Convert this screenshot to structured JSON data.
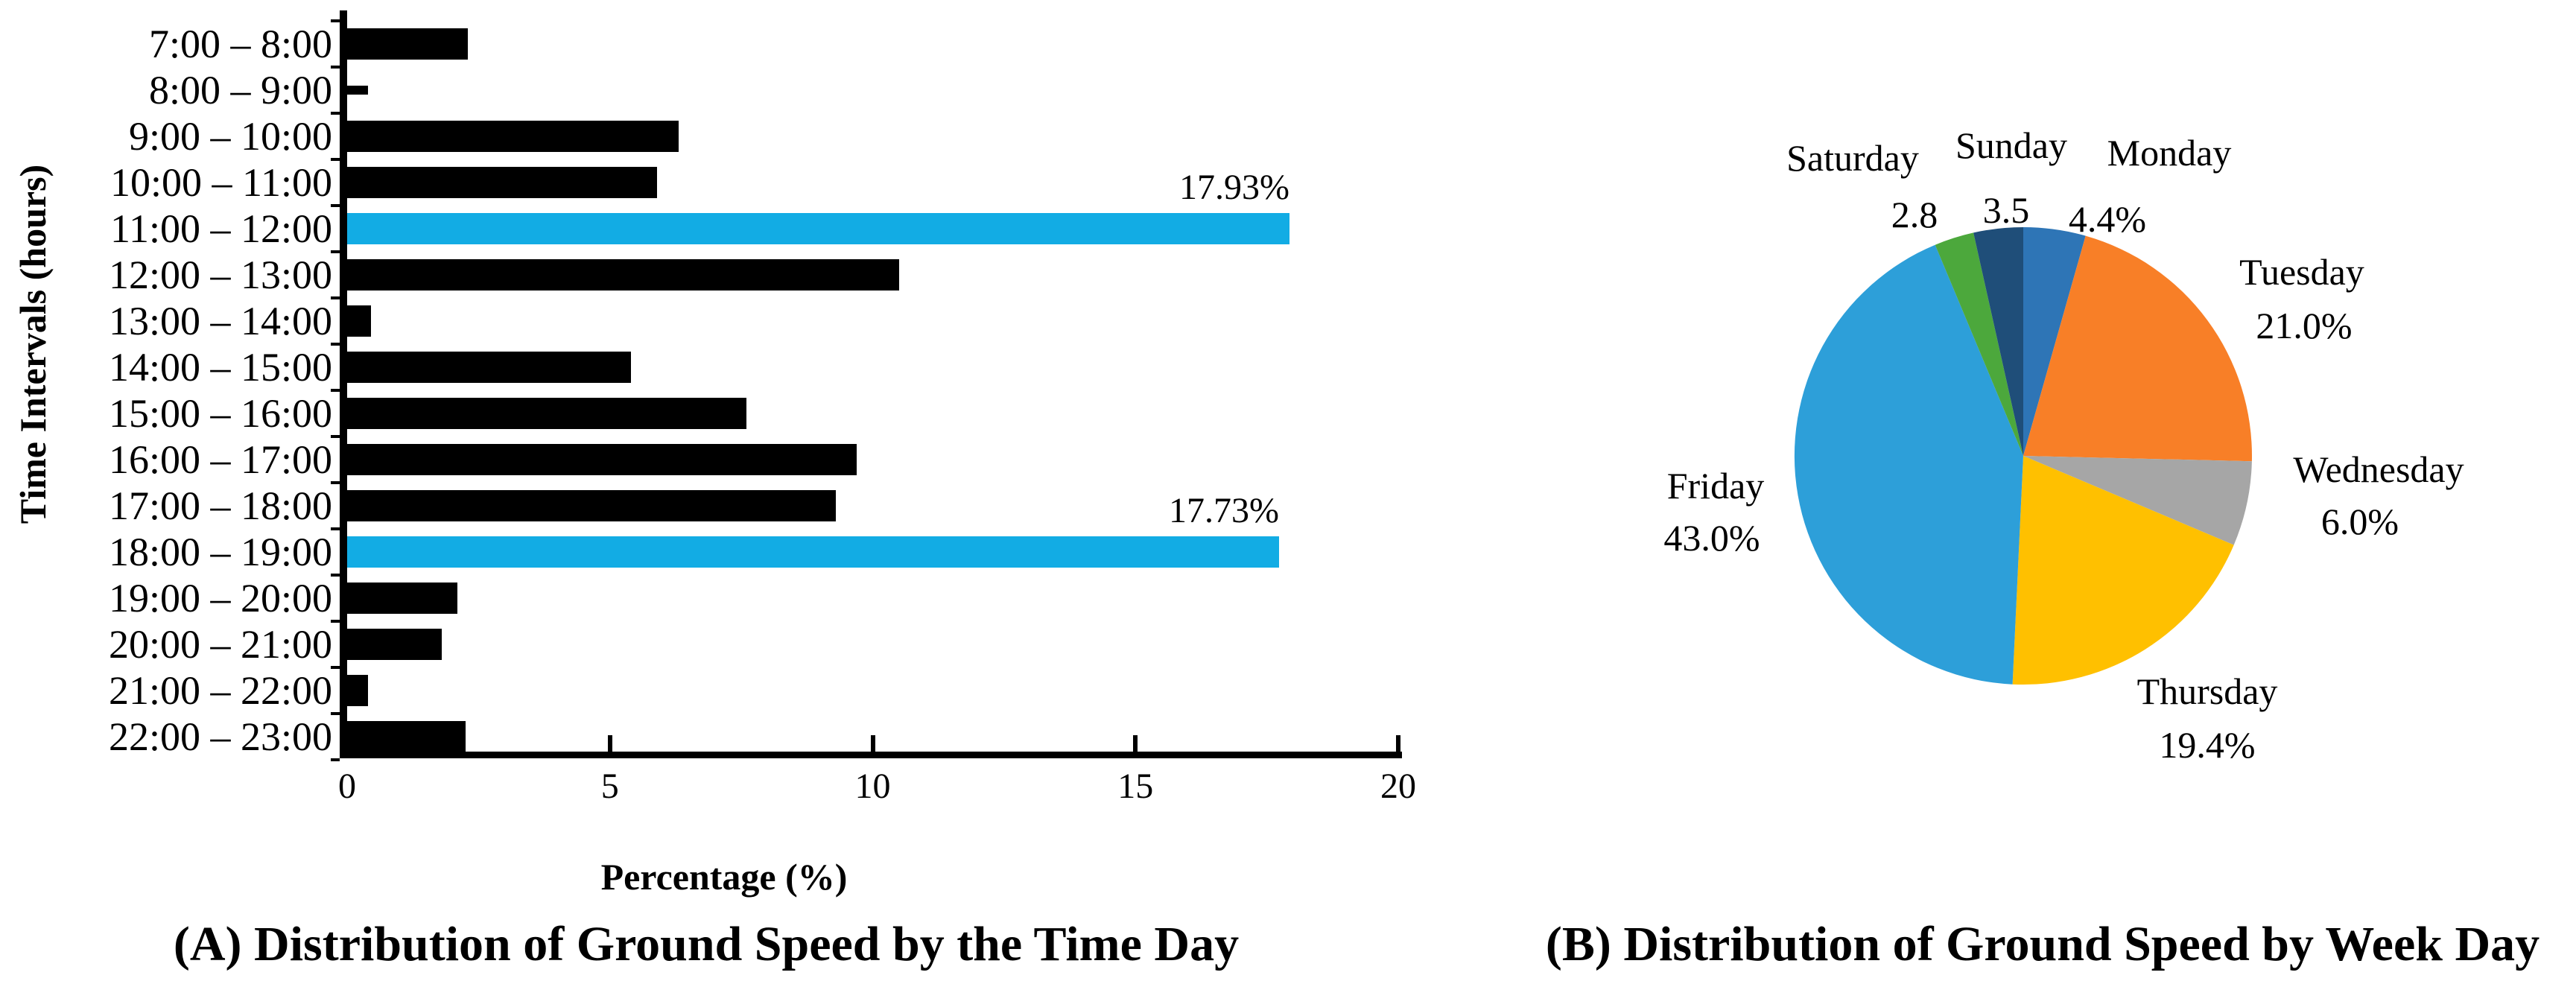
{
  "chart_data": [
    {
      "id": "ground-speed-by-time-of-day",
      "type": "bar",
      "orientation": "horizontal",
      "caption": "(A) Distribution of Ground Speed by the Time Day",
      "xlabel": "Percentage (%)",
      "ylabel": "Time Intervals (hours)",
      "xlim": [
        0,
        20
      ],
      "x_ticks": [
        0,
        5,
        10,
        15,
        20
      ],
      "grid": false,
      "categories": [
        "7:00 – 8:00",
        "8:00 – 9:00",
        "9:00 – 10:00",
        "10:00 – 11:00",
        "11:00 – 12:00",
        "12:00 – 13:00",
        "13:00 – 14:00",
        "14:00 – 15:00",
        "15:00 – 16:00",
        "16:00 – 17:00",
        "17:00 – 18:00",
        "18:00 – 19:00",
        "19:00 – 20:00",
        "20:00 – 21:00",
        "21:00 – 22:00",
        "22:00 – 23:00"
      ],
      "values": [
        2.3,
        0.4,
        6.3,
        5.9,
        17.93,
        10.5,
        0.45,
        5.4,
        7.6,
        9.7,
        9.3,
        17.73,
        2.1,
        1.8,
        0.4,
        2.25
      ],
      "highlight_indexes": [
        4,
        11
      ],
      "annotations": [
        {
          "index": 4,
          "text": "17.93%"
        },
        {
          "index": 11,
          "text": "17.73%"
        }
      ],
      "colors": {
        "bar": "#000000",
        "highlight": "#12ACE4"
      }
    },
    {
      "id": "ground-speed-by-week-day",
      "type": "pie",
      "caption": "(B) Distribution of Ground Speed by Week Day",
      "start_angle": "12 o'clock, clockwise",
      "slices": [
        {
          "label": "Monday",
          "value": 4.4,
          "value_text": "4.4%",
          "color": "#2E75B6"
        },
        {
          "label": "Tuesday",
          "value": 21.0,
          "value_text": "21.0%",
          "color": "#F87F27"
        },
        {
          "label": "Wednesday",
          "value": 6.0,
          "value_text": "6.0%",
          "color": "#A6A6A6"
        },
        {
          "label": "Thursday",
          "value": 19.4,
          "value_text": "19.4%",
          "color": "#FFC000"
        },
        {
          "label": "Friday",
          "value": 43.0,
          "value_text": "43.0%",
          "color": "#2D9FD9"
        },
        {
          "label": "Saturday",
          "value": 2.8,
          "value_text": "2.8",
          "color": "#4CA83C"
        },
        {
          "label": "Sunday",
          "value": 3.5,
          "value_text": "3.5",
          "color": "#1F4E79"
        }
      ]
    }
  ]
}
